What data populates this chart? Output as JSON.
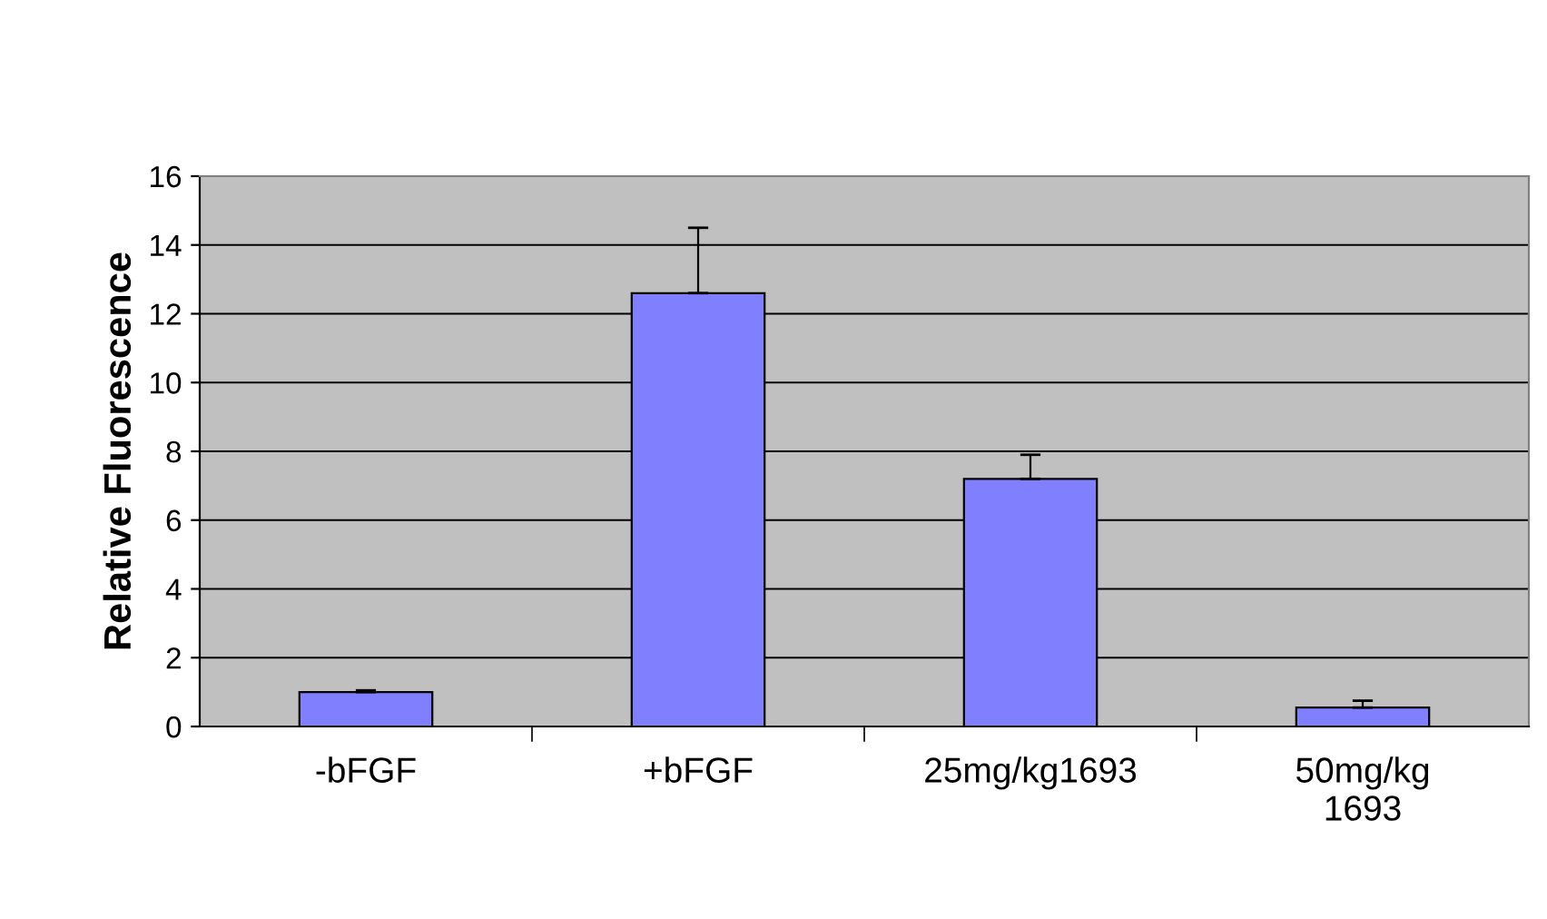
{
  "chart_data": {
    "type": "bar",
    "ylabel": "Relative Fluorescence",
    "categories": [
      "-bFGF",
      "+bFGF",
      "25mg/kg1693",
      "50mg/kg\n1693"
    ],
    "values": [
      1.0,
      12.6,
      7.2,
      0.55
    ],
    "errors": [
      [
        1.0,
        1.05
      ],
      [
        12.6,
        14.5
      ],
      [
        7.2,
        7.9
      ],
      [
        0.55,
        0.75
      ]
    ],
    "color": "#8080ff",
    "ylim": [
      0,
      16
    ],
    "yticks": [
      0,
      2,
      4,
      6,
      8,
      10,
      12,
      14,
      16
    ],
    "grid": "y"
  }
}
